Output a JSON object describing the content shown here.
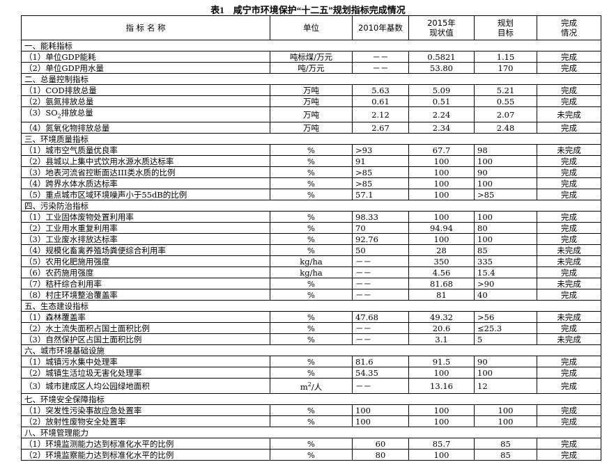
{
  "title": "表1　咸宁市环境保护“十二五”规划指标完成情况",
  "header": [
    [
      "指 标 名 称"
    ],
    [
      "单位"
    ],
    [
      "2010年基数"
    ],
    [
      "2015年",
      "现状值"
    ],
    [
      "规划",
      "目标"
    ],
    [
      "完成",
      "情况"
    ]
  ],
  "sections": [
    {
      "title": "一、能耗指标",
      "rows": [
        [
          "（1）单位GDP能耗",
          "吨标煤/万元",
          "－－",
          "0.5821",
          "1.15",
          "完成"
        ],
        [
          "（2）单位GDP用水量",
          "吨/万元",
          "－－",
          "53.80",
          "170",
          "完成"
        ]
      ]
    },
    {
      "title": "二、总量控制指标",
      "rows": [
        [
          "（1）COD排放总量",
          "万吨",
          "5.63",
          "5.09",
          "5.21",
          "完成"
        ],
        [
          "（2）氨氮排放总量",
          "万吨",
          "0.61",
          "0.51",
          "0.55",
          "完成"
        ],
        [
          {
            "text": "（3）SO",
            "sub": "2",
            "tail": "排放总量"
          },
          "万吨",
          "2.12",
          "2.24",
          "2.07",
          "未完成"
        ],
        [
          "（4）氮氧化物排放总量",
          "万吨",
          "2.67",
          "2.34",
          "2.48",
          "完成"
        ]
      ]
    },
    {
      "title": "三、环境质量指标",
      "rows": [
        [
          "（1）城市空气质量优良率",
          "%",
          ">93",
          "67.7",
          "98",
          "未完成"
        ],
        [
          "（2）县城以上集中式饮用水源水质达标率",
          "%",
          "91",
          "100",
          "100",
          "完成"
        ],
        [
          "（3）地表河流省控断面达III类水质的比例",
          "%",
          ">85",
          "100",
          "90",
          "完成"
        ],
        [
          "（4）跨界水体水质达标率",
          "%",
          ">85",
          "100",
          "100",
          "完成"
        ],
        [
          "（5）重点城市区域环境噪声小于55dB的比例",
          "%",
          "57.1",
          "100",
          ">85",
          "完成"
        ]
      ]
    },
    {
      "title": "四、污染防治指标",
      "rows": [
        [
          "（1）工业固体废物处置利用率",
          "%",
          "98.33",
          "100",
          "100",
          "完成"
        ],
        [
          "（2）工业用水重复利用率",
          "%",
          "70",
          "94.94",
          "80",
          "完成"
        ],
        [
          "（3）工业废水排放达标率",
          "%",
          "92.76",
          "100",
          "100",
          "完成"
        ],
        [
          "（4）规模化畜禽养殖场粪便综合利用率",
          "%",
          "50",
          "28",
          "85",
          "未完成"
        ],
        [
          "（5）农用化肥施用强度",
          "kg/ha",
          "－－",
          "350",
          "335",
          "未完成"
        ],
        [
          "（6）农药施用强度",
          "kg/ha",
          "－－",
          "4.56",
          "15.4",
          "完成"
        ],
        [
          "（7）秸秆综合利用率",
          "%",
          "－－",
          "81.68",
          ">90",
          "未完成"
        ],
        [
          "（8）村庄环境整治覆盖率",
          "%",
          "－－",
          "81",
          "40",
          "完成"
        ]
      ]
    },
    {
      "title": "五、生态建设指标",
      "rows": [
        [
          "（1）森林覆盖率",
          "%",
          "47.68",
          "49.32",
          ">56",
          "未完成"
        ],
        [
          "（2）水土流失面积占国土面积比例",
          "%",
          "－－",
          "20.6",
          "≤25.3",
          "完成"
        ],
        [
          "（3）自然保护区占国土面积比例",
          "%",
          "－－",
          "3.1",
          "5",
          "未完成"
        ]
      ]
    },
    {
      "title": "六、城市环境基础设施",
      "rows": [
        [
          "（1）城镇污水集中处理率",
          "%",
          "81.6",
          "91.5",
          "90",
          "完成"
        ],
        [
          "（2）城镇生活垃圾无害化处理率",
          "%",
          "54.35",
          "100",
          "100",
          "完成"
        ],
        [
          "（3）城市建成区人均公园绿地面积",
          {
            "text": "m",
            "sup": "2",
            "tail": "/人"
          },
          "－－",
          "13.16",
          "12",
          "完成"
        ]
      ]
    },
    {
      "title": "七、环境安全保障指标",
      "rows": [
        [
          "（1）突发性污染事故应急处置率",
          "%",
          "100",
          "100",
          "100",
          "完成"
        ],
        [
          "（2）放射性废物安全处置率",
          "%",
          "100",
          "100",
          "100",
          "完成"
        ]
      ]
    },
    {
      "title": "八、环境管理能力",
      "rows": [
        [
          "（1）环境监测能力达到标准化水平的比例",
          "%",
          "60",
          "85.7",
          "85",
          "完成"
        ],
        [
          "（2）环境监察能力达到标准化水平的比例",
          "%",
          "80",
          "100",
          "85",
          "完成"
        ]
      ]
    }
  ]
}
